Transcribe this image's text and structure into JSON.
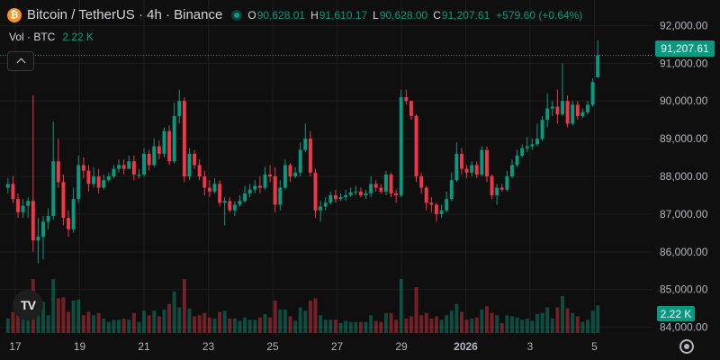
{
  "symbol": {
    "title": "Bitcoin / TetherUS · 4h · Binance",
    "badge": "₿"
  },
  "ohlc": {
    "o_label": "O",
    "o": "90,628.01",
    "h_label": "H",
    "h": "91,610.17",
    "l_label": "L",
    "l": "90,628.00",
    "c_label": "C",
    "c": "91,207.61",
    "change": "+579.60 (+0.64%)"
  },
  "volume": {
    "label": "Vol · BTC",
    "value": "2.22 K"
  },
  "logo": {
    "text": "TV",
    "icon": "tradingview-logo-icon"
  },
  "colors": {
    "up": "#089981",
    "down": "#f23645",
    "background": "#0f0f0f",
    "grid": "#1f1f1f"
  },
  "chart_data": {
    "type": "candlestick",
    "y_ticks": [
      "84,000.00",
      "85,000.00",
      "86,000.00",
      "87,000.00",
      "88,000.00",
      "89,000.00",
      "90,000.00",
      "91,000.00",
      "92,000.00"
    ],
    "y_tick_values": [
      84000,
      85000,
      86000,
      87000,
      88000,
      89000,
      90000,
      91000,
      92000
    ],
    "ylim": [
      83800,
      92200
    ],
    "x_ticks": [
      "17",
      "19",
      "21",
      "23",
      "25",
      "27",
      "29",
      "2026",
      "3",
      "5"
    ],
    "last_price": 91207.61,
    "last_price_label": "91,207.61",
    "last_volume_label": "2.22 K",
    "grid": true,
    "candles_close": [
      87800,
      87400,
      87050,
      87220,
      87350,
      86300,
      86400,
      86800,
      86950,
      88400,
      87850,
      86900,
      86600,
      87400,
      88300,
      88150,
      87800,
      88000,
      87700,
      87900,
      88000,
      88200,
      88300,
      88200,
      88400,
      88050,
      88050,
      88600,
      88300,
      88800,
      88600,
      89200,
      88400,
      89600,
      90000,
      88000,
      88600,
      88300,
      88000,
      87700,
      87600,
      87800,
      87300,
      87350,
      87100,
      87250,
      87350,
      87550,
      87650,
      87750,
      87700,
      88050,
      88000,
      87250,
      87700,
      88300,
      88000,
      88100,
      88700,
      89000,
      88100,
      87100,
      87200,
      87300,
      87500,
      87400,
      87450,
      87500,
      87580,
      87600,
      87500,
      87550,
      87800,
      87700,
      87600,
      88050,
      87550,
      87500,
      90100,
      90000,
      89600,
      88000,
      87700,
      87300,
      87250,
      87000,
      87100,
      87400,
      87900,
      88600,
      88200,
      88100,
      88300,
      88050,
      88700,
      88000,
      87500,
      87700,
      87650,
      88000,
      88300,
      88550,
      88750,
      88800,
      88850,
      89000,
      89500,
      89800,
      89850,
      89650,
      90000,
      89400,
      89900,
      89600,
      89700,
      89900,
      90500,
      91207.61
    ],
    "candles_open": [
      87700,
      87800,
      87400,
      87050,
      87220,
      87350,
      86300,
      86400,
      86800,
      86950,
      88400,
      87850,
      86900,
      86600,
      87400,
      88300,
      88150,
      87800,
      88000,
      87700,
      87900,
      88000,
      88200,
      88300,
      88200,
      88400,
      88050,
      88050,
      88600,
      88300,
      88800,
      88600,
      89200,
      88400,
      89600,
      90000,
      88000,
      88600,
      88300,
      88000,
      87700,
      87600,
      87800,
      87300,
      87350,
      87100,
      87250,
      87350,
      87550,
      87650,
      87750,
      87700,
      88050,
      88000,
      87250,
      87700,
      88300,
      88000,
      88100,
      88700,
      89000,
      88100,
      87100,
      87200,
      87300,
      87500,
      87400,
      87450,
      87500,
      87580,
      87600,
      87500,
      87550,
      87800,
      87700,
      87600,
      88050,
      87550,
      87500,
      90100,
      90000,
      89600,
      88000,
      87700,
      87300,
      87250,
      87000,
      87100,
      87400,
      87900,
      88600,
      88200,
      88100,
      88300,
      88050,
      88700,
      88000,
      87500,
      87700,
      87650,
      88000,
      88300,
      88550,
      88750,
      88800,
      88850,
      89000,
      89500,
      89800,
      89850,
      89650,
      90000,
      89400,
      89900,
      89600,
      89700,
      89900,
      90628.01
    ],
    "candles_high": [
      87950,
      88000,
      87550,
      87400,
      87450,
      90150,
      86900,
      86950,
      87150,
      89450,
      89000,
      88050,
      87100,
      87700,
      88550,
      88500,
      88300,
      88250,
      88200,
      88050,
      88100,
      88300,
      88450,
      88450,
      88550,
      88550,
      88200,
      88750,
      88700,
      89000,
      88950,
      89300,
      89350,
      89950,
      90300,
      90100,
      88750,
      88700,
      88450,
      88150,
      87900,
      87950,
      87900,
      87450,
      87450,
      87350,
      87500,
      87750,
      87800,
      87900,
      88000,
      88250,
      88300,
      88250,
      87900,
      88450,
      88350,
      88250,
      88900,
      89400,
      89200,
      88200,
      87350,
      87450,
      87600,
      87650,
      87550,
      87650,
      87700,
      87750,
      87700,
      87650,
      88000,
      87900,
      87800,
      88150,
      88100,
      87650,
      90300,
      90300,
      90000,
      89650,
      88100,
      87750,
      87450,
      87300,
      87250,
      87600,
      88100,
      88900,
      88750,
      88300,
      88400,
      88400,
      88800,
      88800,
      88050,
      87800,
      87800,
      88150,
      88450,
      88700,
      88850,
      89050,
      89000,
      89400,
      89600,
      90200,
      90000,
      90300,
      91000,
      90150,
      90000,
      90000,
      89800,
      90000,
      90600,
      91610.17
    ],
    "candles_low": [
      87550,
      87300,
      86900,
      86900,
      86900,
      86000,
      85700,
      85800,
      86600,
      86850,
      87700,
      86700,
      86400,
      86500,
      87300,
      87950,
      87600,
      87700,
      87550,
      87650,
      87850,
      87950,
      88100,
      88050,
      88200,
      87900,
      87950,
      88000,
      88150,
      88250,
      88450,
      88500,
      88300,
      88350,
      89400,
      87850,
      87900,
      88200,
      87900,
      87500,
      87450,
      87550,
      87200,
      86700,
      87050,
      86950,
      87200,
      87300,
      87450,
      87550,
      87550,
      87650,
      87850,
      87050,
      87100,
      87650,
      87850,
      87950,
      88000,
      88650,
      88000,
      86900,
      86800,
      87100,
      87250,
      87300,
      87350,
      87350,
      87450,
      87500,
      87450,
      87400,
      87450,
      87600,
      87550,
      87500,
      87450,
      87300,
      87450,
      89900,
      89500,
      87850,
      87550,
      87100,
      87050,
      86800,
      86900,
      87050,
      87350,
      87850,
      88050,
      87950,
      88000,
      87950,
      88000,
      87850,
      87400,
      87250,
      87600,
      87600,
      87950,
      88250,
      88500,
      88650,
      88700,
      88800,
      88950,
      89300,
      89600,
      89400,
      89600,
      89300,
      89350,
      89500,
      89550,
      89650,
      89850,
      90628.0
    ],
    "volume_scale_max": 60
  }
}
